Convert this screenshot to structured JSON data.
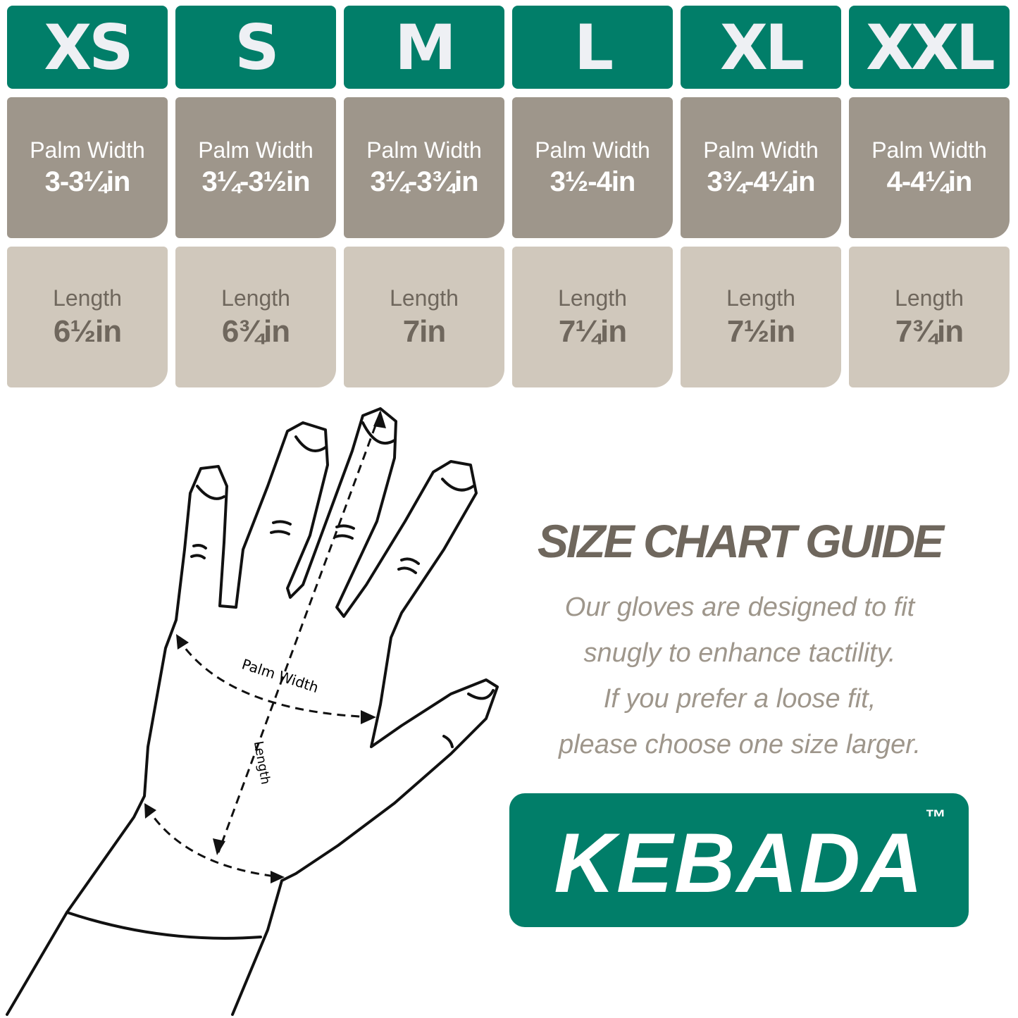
{
  "sizes": [
    {
      "size": "XS",
      "palm_label": "Palm Width",
      "palm": "3-3¼in",
      "length_label": "Length",
      "length": "6½in"
    },
    {
      "size": "S",
      "palm_label": "Palm Width",
      "palm": "3¼-3½in",
      "length_label": "Length",
      "length": "6¾in"
    },
    {
      "size": "M",
      "palm_label": "Palm Width",
      "palm": "3¼-3¾in",
      "length_label": "Length",
      "length": "7in"
    },
    {
      "size": "L",
      "palm_label": "Palm Width",
      "palm": "3½-4in",
      "length_label": "Length",
      "length": "7¼in"
    },
    {
      "size": "XL",
      "palm_label": "Palm Width",
      "palm": "3¾-4¼in",
      "length_label": "Length",
      "length": "7½in"
    },
    {
      "size": "XXL",
      "palm_label": "Palm Width",
      "palm": "4-4¼in",
      "length_label": "Length",
      "length": "7¾in"
    }
  ],
  "diagram": {
    "palm_width_label": "Palm Width",
    "length_label": "Length"
  },
  "guide": {
    "title": "SIZE CHART GUIDE",
    "lines": [
      "Our gloves are designed to fit",
      "snugly to enhance tactility.",
      "If you prefer a loose fit,",
      "please choose one size larger."
    ]
  },
  "logo": {
    "brand": "KEBADA",
    "tm": "™"
  },
  "colors": {
    "green": "#017e69",
    "palm_bg": "#9e968b",
    "length_bg": "#d0c8bc",
    "text": "#6f675d"
  }
}
